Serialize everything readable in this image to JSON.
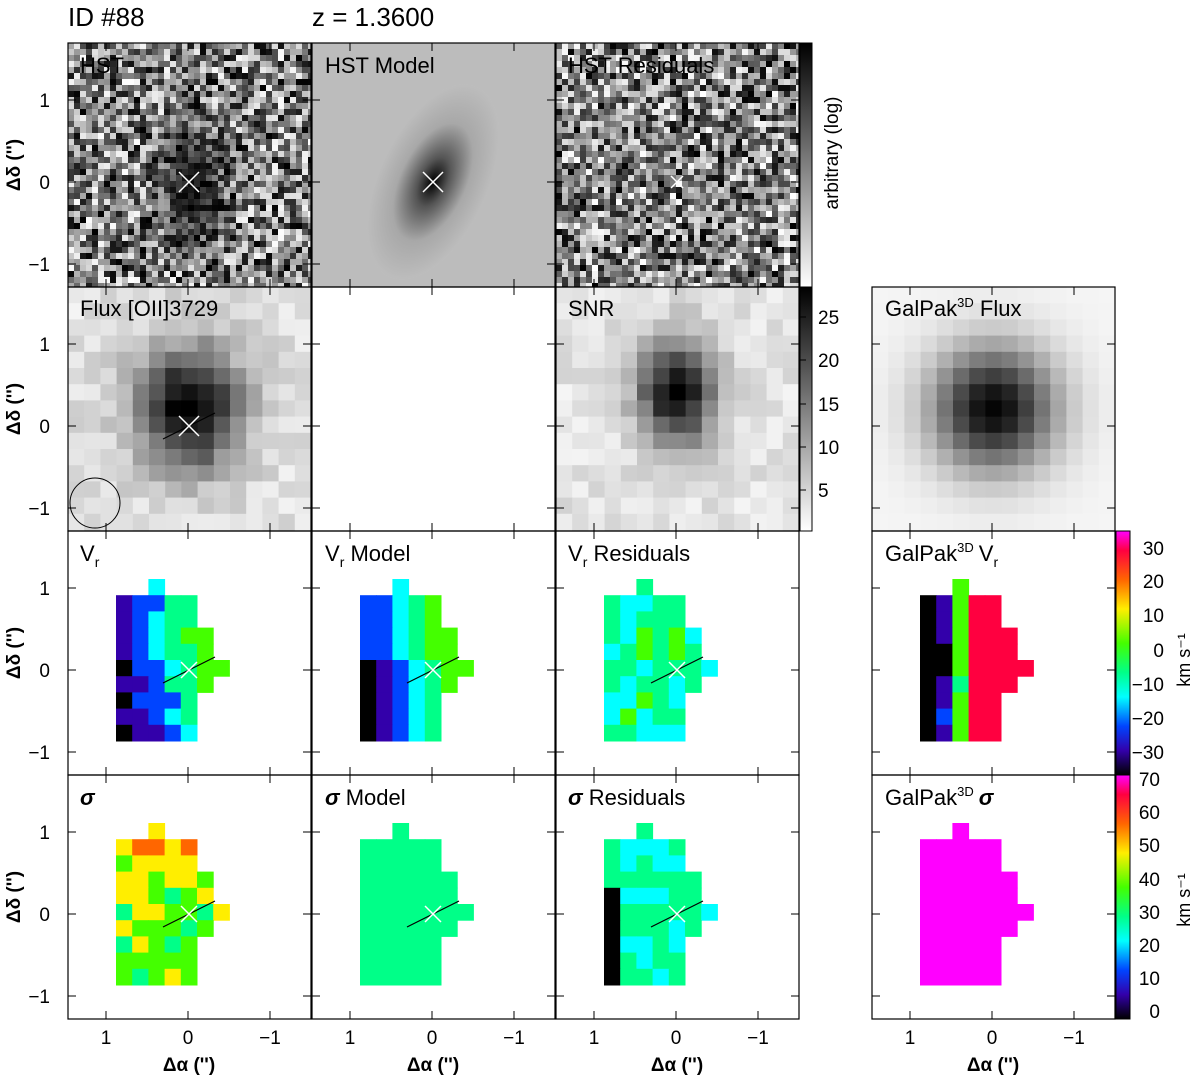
{
  "header": {
    "id_label": "ID  #88",
    "z_label": "z  =  1.3600"
  },
  "panel_titles": {
    "hst": "HST",
    "hst_model": "HST  Model",
    "hst_residuals": "HST  Residuals",
    "flux": "Flux  [OII]3729",
    "snr": "SNR",
    "galpak_flux": "GalPak",
    "galpak_flux_suffix": " Flux",
    "vr": "V",
    "vr_model": " Model",
    "vr_residuals": " Residuals",
    "galpak_vr": "GalPak",
    "sigma": "σ",
    "sigma_model": " Model",
    "sigma_residuals": " Residuals",
    "galpak_sigma": "GalPak",
    "vr_sub": "r",
    "galpak_sup": "3D"
  },
  "axes": {
    "x_label": "Δα ('')",
    "y_label": "Δδ ('')",
    "x_ticks": [
      "1",
      "0",
      "−1"
    ],
    "y_ticks": [
      "1",
      "0",
      "−1"
    ]
  },
  "colorbars": {
    "hst": {
      "label": "arbitrary (log)"
    },
    "snr": {
      "ticks": [
        "25",
        "20",
        "15",
        "10",
        "5"
      ]
    },
    "vr": {
      "label": "km s⁻¹",
      "ticks": [
        "30",
        "20",
        "10",
        "0",
        "−10",
        "−20",
        "−30"
      ]
    },
    "sigma": {
      "label": "km s⁻¹",
      "ticks": [
        "70",
        "60",
        "50",
        "40",
        "30",
        "20",
        "10",
        "0"
      ]
    }
  }
}
